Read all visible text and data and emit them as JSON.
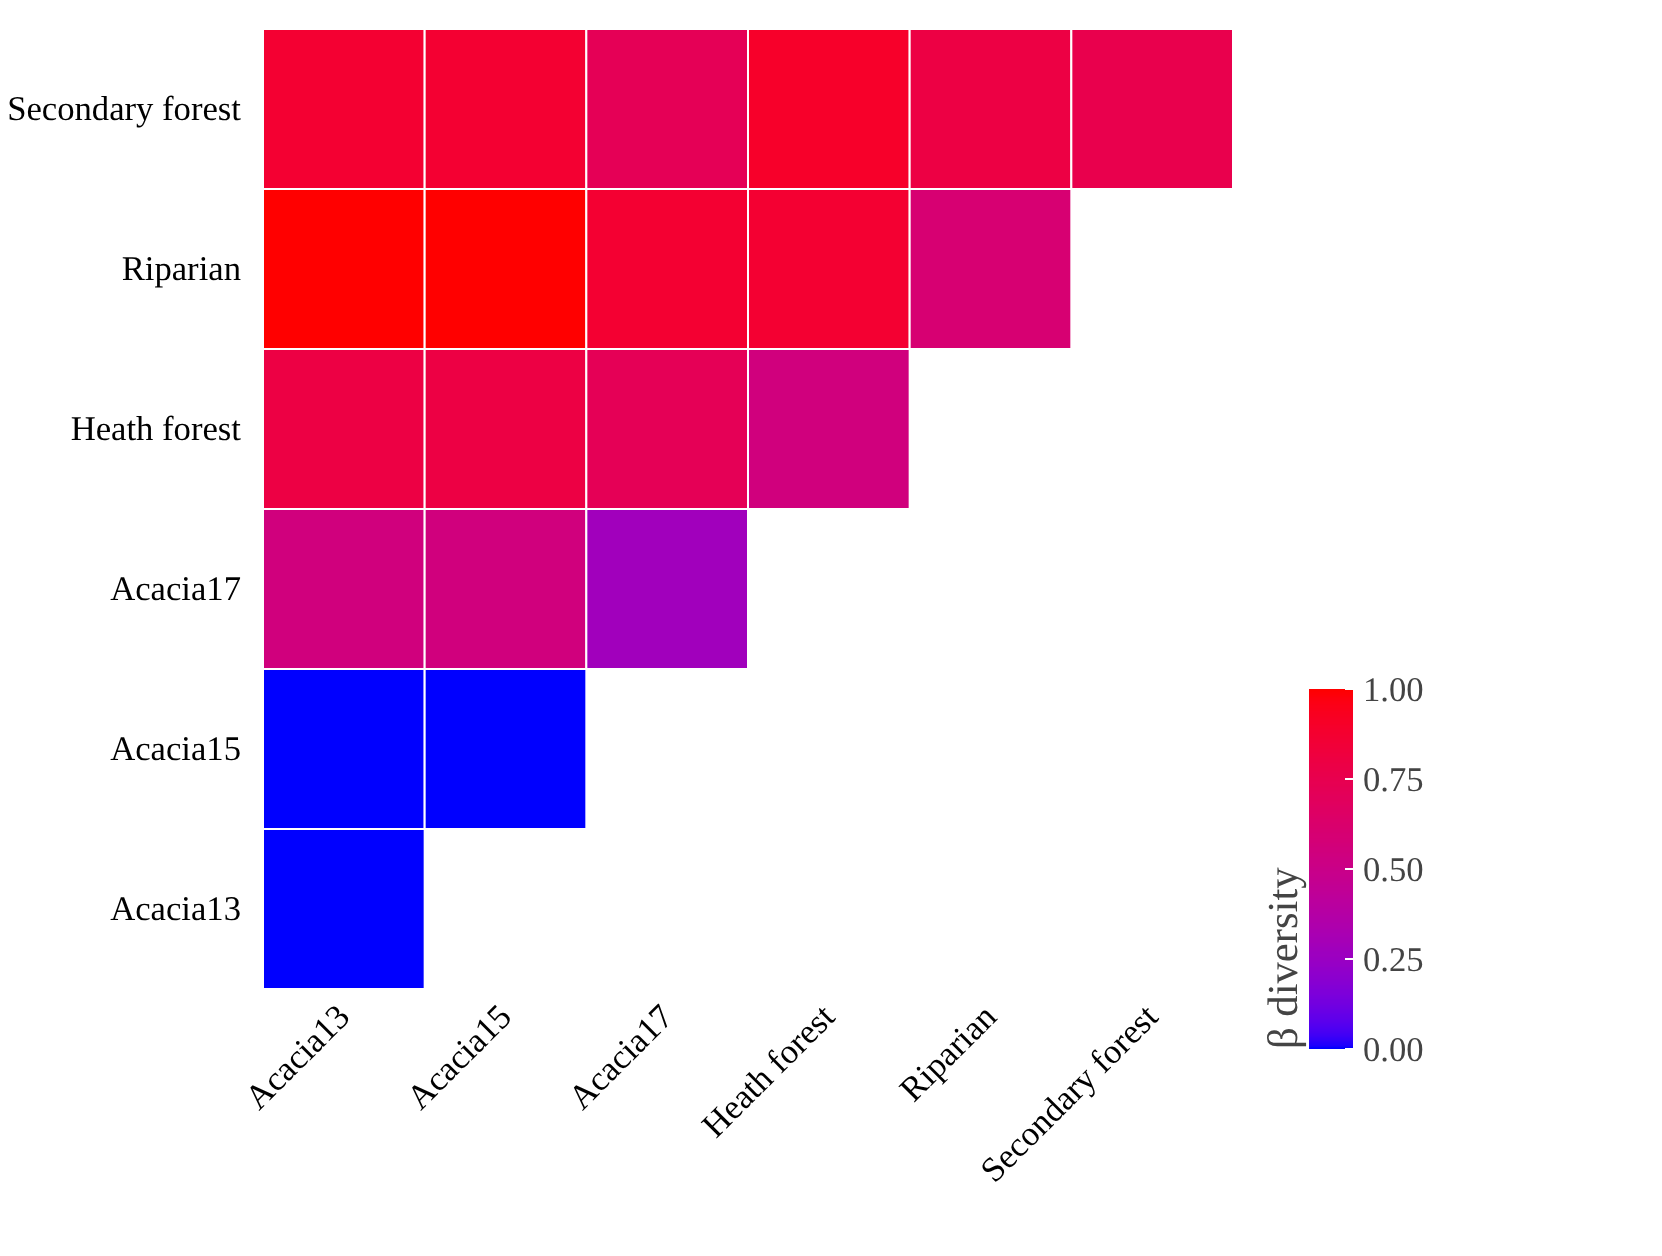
{
  "chart_data": {
    "type": "heatmap",
    "clabel": "β diversity",
    "categories": [
      "Acacia13",
      "Acacia15",
      "Acacia17",
      "Heath forest",
      "Riparian",
      "Secondary forest"
    ],
    "y_categories": [
      "Secondary forest",
      "Riparian",
      "Heath forest",
      "Acacia17",
      "Acacia15",
      "Acacia13"
    ],
    "cells": [
      [
        0.87,
        0.87,
        0.72,
        0.9,
        0.8,
        0.76
      ],
      [
        1.0,
        1.0,
        0.87,
        0.87,
        0.6,
        null
      ],
      [
        0.8,
        0.8,
        0.72,
        0.55,
        null,
        null
      ],
      [
        0.55,
        0.55,
        0.28,
        null,
        null,
        null
      ],
      [
        0.0,
        0.0,
        null,
        null,
        null,
        null
      ],
      [
        0.0,
        null,
        null,
        null,
        null,
        null
      ]
    ],
    "colors": [
      "#0000ff",
      "#ff0000"
    ],
    "clim": [
      0,
      1
    ],
    "cticks": [
      {
        "value": 0,
        "label": "0.00"
      },
      {
        "value": 0.25,
        "label": "0.25"
      },
      {
        "value": 0.5,
        "label": "0.50"
      },
      {
        "value": 0.75,
        "label": "0.75"
      },
      {
        "value": 1,
        "label": "1.00"
      }
    ]
  }
}
